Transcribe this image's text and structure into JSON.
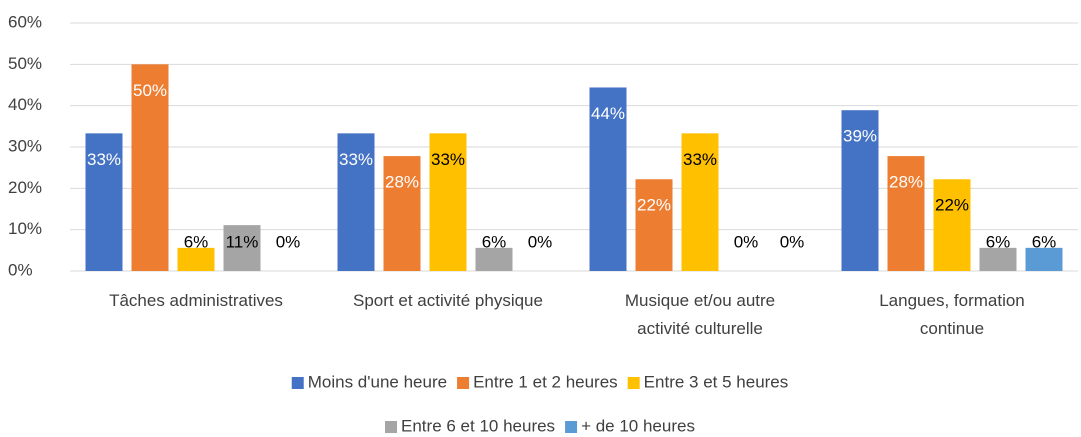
{
  "chart_data": {
    "type": "bar",
    "categories": [
      "Tâches administratives",
      "Sport et activité physique",
      "Musique et/ou autre\nactivité culturelle",
      "Langues, formation\ncontinue"
    ],
    "series": [
      {
        "name": "Moins d'une heure",
        "color": "#4472c4",
        "label_color": "#ffffff",
        "values": [
          33.3,
          33.3,
          44.4,
          38.9
        ],
        "value_labels": [
          "33%",
          "33%",
          "44%",
          "39%"
        ]
      },
      {
        "name": "Entre 1 et 2 heures",
        "color": "#ed7d31",
        "label_color": "#ffffff",
        "values": [
          50,
          27.8,
          22.2,
          27.8
        ],
        "value_labels": [
          "50%",
          "28%",
          "22%",
          "28%"
        ]
      },
      {
        "name": "Entre 3 et 5 heures",
        "color": "#ffc000",
        "label_color": "#000000",
        "values": [
          5.6,
          33.3,
          33.3,
          22.2
        ],
        "value_labels": [
          "6%",
          "33%",
          "33%",
          "22%"
        ]
      },
      {
        "name": "Entre 6 et 10 heures",
        "color": "#a5a5a5",
        "label_color": "#000000",
        "values": [
          11.1,
          5.6,
          0,
          5.6
        ],
        "value_labels": [
          "11%",
          "6%",
          "0%",
          "6%"
        ]
      },
      {
        "name": "+ de 10 heures",
        "color": "#5b9bd5",
        "label_color": "#000000",
        "values": [
          0,
          0,
          0,
          5.6
        ],
        "value_labels": [
          "0%",
          "0%",
          "0%",
          "6%"
        ]
      }
    ],
    "ylim": [
      0,
      60
    ],
    "yticks": [
      {
        "value": 0,
        "label": "0%"
      },
      {
        "value": 10,
        "label": "10%"
      },
      {
        "value": 20,
        "label": "20%"
      },
      {
        "value": 30,
        "label": "30%"
      },
      {
        "value": 40,
        "label": "40%"
      },
      {
        "value": 50,
        "label": "50%"
      },
      {
        "value": 60,
        "label": "60%"
      }
    ],
    "grid": true,
    "legend": "bottom"
  }
}
